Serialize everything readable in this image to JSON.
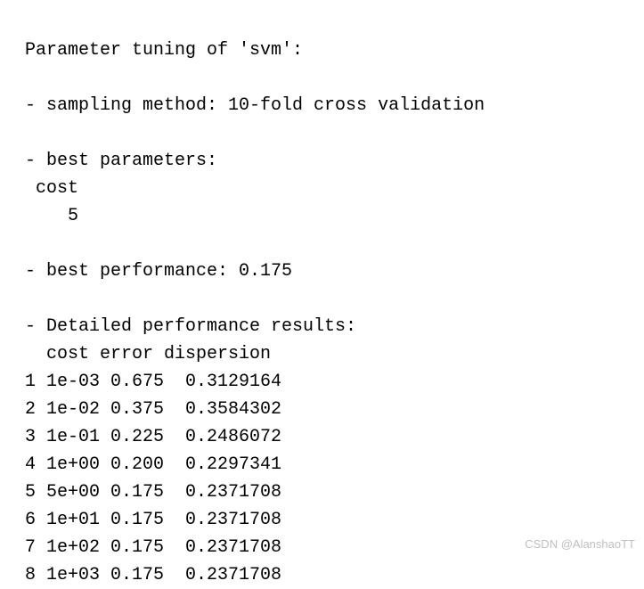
{
  "title_line": "Parameter tuning of 'svm':",
  "sampling_line": "- sampling method: 10-fold cross validation",
  "best_params_header": "- best parameters:",
  "best_params_name": " cost",
  "best_params_value": "    5",
  "best_perf_line": "- best performance: 0.175",
  "detail_header": "- Detailed performance results:",
  "table_header": "  cost error dispersion",
  "rows": [
    "1 1e-03 0.675  0.3129164",
    "2 1e-02 0.375  0.3584302",
    "3 1e-01 0.225  0.2486072",
    "4 1e+00 0.200  0.2297341",
    "5 5e+00 0.175  0.2371708",
    "6 1e+01 0.175  0.2371708",
    "7 1e+02 0.175  0.2371708",
    "8 1e+03 0.175  0.2371708"
  ],
  "watermark": "CSDN @AlanshaoTT"
}
